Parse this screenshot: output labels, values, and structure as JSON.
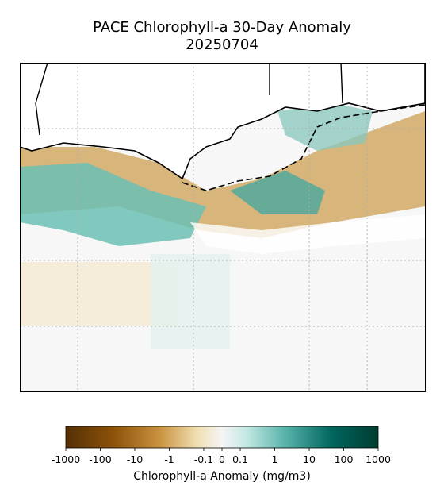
{
  "title": [
    "PACE Chlorophyll-a 30-Day Anomaly",
    "20250704"
  ],
  "colorbar": {
    "label": "Chlorophyll-a Anomaly (mg/m3)",
    "scale": "symlog",
    "linthresh": 0.1,
    "lim": [
      -1000,
      1000
    ],
    "ticks": [
      -1000,
      -100,
      -10,
      -1,
      -0.1,
      0,
      0.1,
      1,
      10,
      100,
      1000
    ]
  }
}
